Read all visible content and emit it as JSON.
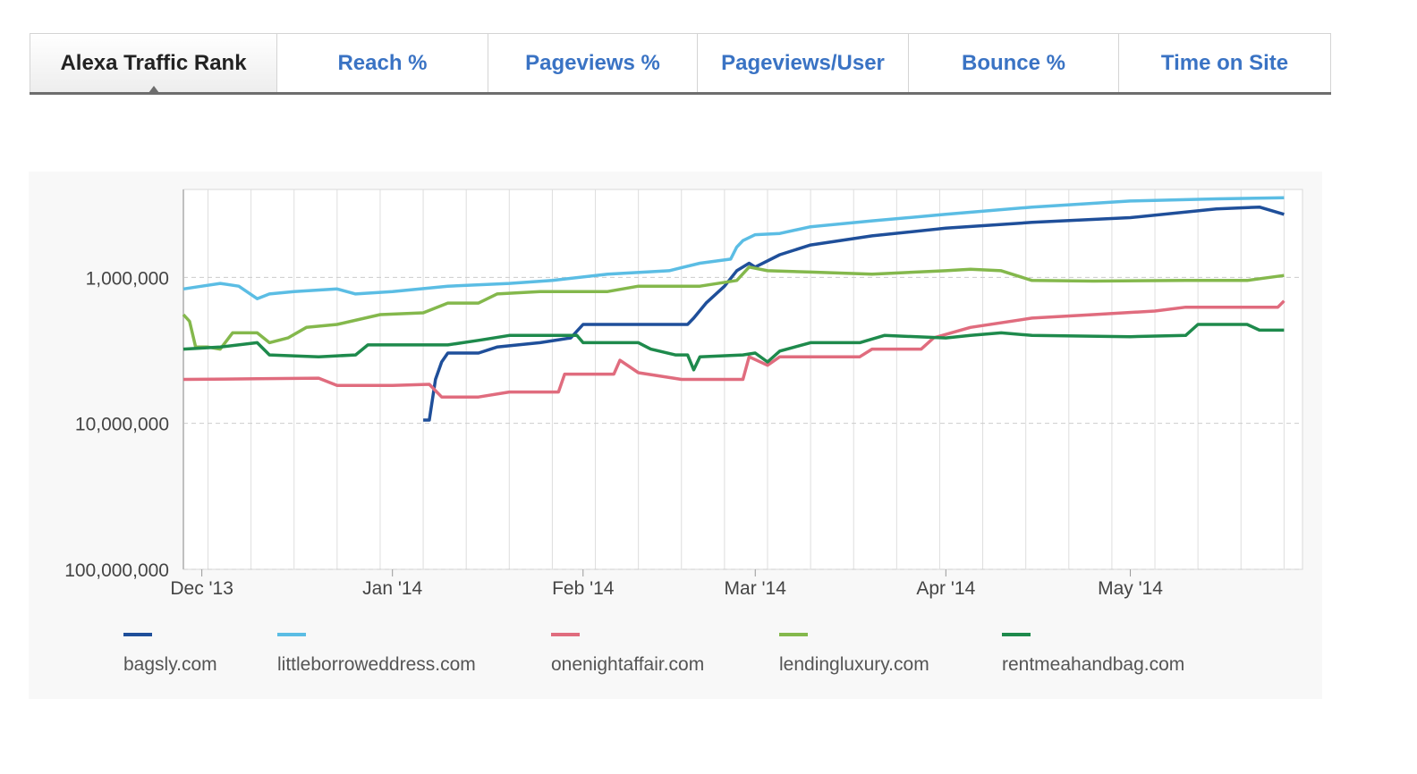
{
  "tabs": [
    {
      "label": "Alexa Traffic Rank",
      "active": true
    },
    {
      "label": "Reach %",
      "active": false
    },
    {
      "label": "Pageviews %",
      "active": false
    },
    {
      "label": "Pageviews/User",
      "active": false
    },
    {
      "label": "Bounce %",
      "active": false
    },
    {
      "label": "Time on Site",
      "active": false
    }
  ],
  "chart_data": {
    "type": "line",
    "title": "",
    "xlabel": "",
    "ylabel": "",
    "y_scale": "log",
    "y_inverted": true,
    "ylim": [
      100000000,
      250000
    ],
    "yticks": [
      1000000,
      10000000,
      100000000
    ],
    "ytick_labels": [
      "1,000,000",
      "10,000,000",
      "100,000,000"
    ],
    "xlim": [
      "2013-11-28",
      "2014-05-29"
    ],
    "xticks": [
      "2013-12-01",
      "2014-01-01",
      "2014-02-01",
      "2014-03-01",
      "2014-04-01",
      "2014-05-01"
    ],
    "xtick_labels": [
      "Dec '13",
      "Jan '14",
      "Feb '14",
      "Mar '14",
      "Apr '14",
      "May '14"
    ],
    "grid": true,
    "legend_position": "bottom",
    "series": [
      {
        "name": "bagsly.com",
        "color": "#1f4f9a",
        "points": [
          [
            "2014-01-06",
            9500000
          ],
          [
            "2014-01-07",
            9500000
          ],
          [
            "2014-01-08",
            5000000
          ],
          [
            "2014-01-09",
            3800000
          ],
          [
            "2014-01-10",
            3300000
          ],
          [
            "2014-01-15",
            3300000
          ],
          [
            "2014-01-18",
            3000000
          ],
          [
            "2014-01-25",
            2800000
          ],
          [
            "2014-01-30",
            2600000
          ],
          [
            "2014-02-01",
            2100000
          ],
          [
            "2014-02-10",
            2100000
          ],
          [
            "2014-02-18",
            2100000
          ],
          [
            "2014-02-19",
            1900000
          ],
          [
            "2014-02-21",
            1500000
          ],
          [
            "2014-02-24",
            1150000
          ],
          [
            "2014-02-26",
            900000
          ],
          [
            "2014-02-28",
            800000
          ],
          [
            "2014-03-01",
            850000
          ],
          [
            "2014-03-05",
            700000
          ],
          [
            "2014-03-10",
            600000
          ],
          [
            "2014-03-20",
            520000
          ],
          [
            "2014-04-01",
            460000
          ],
          [
            "2014-04-15",
            420000
          ],
          [
            "2014-05-01",
            390000
          ],
          [
            "2014-05-15",
            340000
          ],
          [
            "2014-05-22",
            330000
          ],
          [
            "2014-05-26",
            370000
          ]
        ]
      },
      {
        "name": "littleborroweddress.com",
        "color": "#5bbde4",
        "points": [
          [
            "2013-11-28",
            1200000
          ],
          [
            "2013-12-01",
            1150000
          ],
          [
            "2013-12-04",
            1100000
          ],
          [
            "2013-12-07",
            1150000
          ],
          [
            "2013-12-10",
            1400000
          ],
          [
            "2013-12-12",
            1300000
          ],
          [
            "2013-12-16",
            1250000
          ],
          [
            "2013-12-23",
            1200000
          ],
          [
            "2013-12-26",
            1300000
          ],
          [
            "2014-01-01",
            1250000
          ],
          [
            "2014-01-10",
            1150000
          ],
          [
            "2014-01-20",
            1100000
          ],
          [
            "2014-01-27",
            1050000
          ],
          [
            "2014-02-05",
            950000
          ],
          [
            "2014-02-15",
            900000
          ],
          [
            "2014-02-20",
            800000
          ],
          [
            "2014-02-25",
            750000
          ],
          [
            "2014-02-26",
            620000
          ],
          [
            "2014-02-27",
            560000
          ],
          [
            "2014-03-01",
            510000
          ],
          [
            "2014-03-05",
            500000
          ],
          [
            "2014-03-10",
            450000
          ],
          [
            "2014-03-20",
            410000
          ],
          [
            "2014-04-01",
            370000
          ],
          [
            "2014-04-15",
            330000
          ],
          [
            "2014-05-01",
            300000
          ],
          [
            "2014-05-15",
            290000
          ],
          [
            "2014-05-26",
            285000
          ]
        ]
      },
      {
        "name": "onenightaffair.com",
        "color": "#e06c7e",
        "points": [
          [
            "2013-11-28",
            5000000
          ],
          [
            "2013-12-10",
            4950000
          ],
          [
            "2013-12-20",
            4900000
          ],
          [
            "2013-12-23",
            5500000
          ],
          [
            "2014-01-01",
            5500000
          ],
          [
            "2014-01-07",
            5400000
          ],
          [
            "2014-01-09",
            6600000
          ],
          [
            "2014-01-15",
            6600000
          ],
          [
            "2014-01-20",
            6100000
          ],
          [
            "2014-01-28",
            6100000
          ],
          [
            "2014-01-29",
            4600000
          ],
          [
            "2014-02-06",
            4600000
          ],
          [
            "2014-02-07",
            3700000
          ],
          [
            "2014-02-10",
            4500000
          ],
          [
            "2014-02-17",
            5000000
          ],
          [
            "2014-02-25",
            5000000
          ],
          [
            "2014-02-27",
            5000000
          ],
          [
            "2014-02-28",
            3500000
          ],
          [
            "2014-03-03",
            4000000
          ],
          [
            "2014-03-05",
            3500000
          ],
          [
            "2014-03-18",
            3500000
          ],
          [
            "2014-03-20",
            3100000
          ],
          [
            "2014-03-28",
            3100000
          ],
          [
            "2014-03-30",
            2600000
          ],
          [
            "2014-04-05",
            2200000
          ],
          [
            "2014-04-15",
            1900000
          ],
          [
            "2014-04-25",
            1800000
          ],
          [
            "2014-05-05",
            1700000
          ],
          [
            "2014-05-10",
            1600000
          ],
          [
            "2014-05-25",
            1600000
          ],
          [
            "2014-05-26",
            1450000
          ]
        ]
      },
      {
        "name": "lendingluxury.com",
        "color": "#84b84c",
        "points": [
          [
            "2013-11-28",
            1800000
          ],
          [
            "2013-11-29",
            2000000
          ],
          [
            "2013-11-30",
            3000000
          ],
          [
            "2013-12-02",
            3000000
          ],
          [
            "2013-12-04",
            3100000
          ],
          [
            "2013-12-06",
            2400000
          ],
          [
            "2013-12-10",
            2400000
          ],
          [
            "2013-12-12",
            2800000
          ],
          [
            "2013-12-15",
            2600000
          ],
          [
            "2013-12-18",
            2200000
          ],
          [
            "2013-12-23",
            2100000
          ],
          [
            "2013-12-30",
            1800000
          ],
          [
            "2014-01-06",
            1750000
          ],
          [
            "2014-01-10",
            1500000
          ],
          [
            "2014-01-15",
            1500000
          ],
          [
            "2014-01-18",
            1300000
          ],
          [
            "2014-01-25",
            1250000
          ],
          [
            "2014-02-05",
            1250000
          ],
          [
            "2014-02-10",
            1150000
          ],
          [
            "2014-02-20",
            1150000
          ],
          [
            "2014-02-26",
            1050000
          ],
          [
            "2014-02-28",
            850000
          ],
          [
            "2014-03-03",
            900000
          ],
          [
            "2014-03-10",
            920000
          ],
          [
            "2014-03-20",
            950000
          ],
          [
            "2014-04-01",
            900000
          ],
          [
            "2014-04-05",
            880000
          ],
          [
            "2014-04-10",
            900000
          ],
          [
            "2014-04-15",
            1050000
          ],
          [
            "2014-04-25",
            1060000
          ],
          [
            "2014-05-10",
            1050000
          ],
          [
            "2014-05-20",
            1050000
          ],
          [
            "2014-05-26",
            970000
          ]
        ]
      },
      {
        "name": "rentmeahandbag.com",
        "color": "#1e8a4c",
        "points": [
          [
            "2013-11-28",
            3100000
          ],
          [
            "2013-12-04",
            3000000
          ],
          [
            "2013-12-10",
            2800000
          ],
          [
            "2013-12-12",
            3400000
          ],
          [
            "2013-12-20",
            3500000
          ],
          [
            "2013-12-26",
            3400000
          ],
          [
            "2013-12-28",
            2900000
          ],
          [
            "2014-01-10",
            2900000
          ],
          [
            "2014-01-15",
            2700000
          ],
          [
            "2014-01-20",
            2500000
          ],
          [
            "2014-01-31",
            2500000
          ],
          [
            "2014-02-01",
            2800000
          ],
          [
            "2014-02-10",
            2800000
          ],
          [
            "2014-02-12",
            3100000
          ],
          [
            "2014-02-16",
            3400000
          ],
          [
            "2014-02-18",
            3400000
          ],
          [
            "2014-02-19",
            4300000
          ],
          [
            "2014-02-20",
            3500000
          ],
          [
            "2014-02-27",
            3400000
          ],
          [
            "2014-03-01",
            3300000
          ],
          [
            "2014-03-03",
            3800000
          ],
          [
            "2014-03-05",
            3200000
          ],
          [
            "2014-03-10",
            2800000
          ],
          [
            "2014-03-18",
            2800000
          ],
          [
            "2014-03-22",
            2500000
          ],
          [
            "2014-04-01",
            2600000
          ],
          [
            "2014-04-05",
            2500000
          ],
          [
            "2014-04-10",
            2400000
          ],
          [
            "2014-04-15",
            2500000
          ],
          [
            "2014-05-01",
            2550000
          ],
          [
            "2014-05-10",
            2500000
          ],
          [
            "2014-05-12",
            2100000
          ],
          [
            "2014-05-20",
            2100000
          ],
          [
            "2014-05-22",
            2300000
          ],
          [
            "2014-05-26",
            2300000
          ]
        ]
      }
    ]
  }
}
